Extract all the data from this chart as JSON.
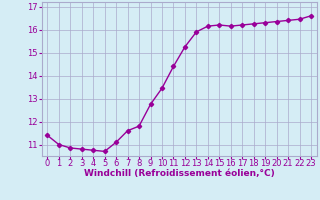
{
  "x": [
    0,
    1,
    2,
    3,
    4,
    5,
    6,
    7,
    8,
    9,
    10,
    11,
    12,
    13,
    14,
    15,
    16,
    17,
    18,
    19,
    20,
    21,
    22,
    23
  ],
  "y": [
    11.4,
    11.0,
    10.85,
    10.8,
    10.75,
    10.7,
    11.1,
    11.6,
    11.8,
    12.75,
    13.45,
    14.4,
    15.25,
    15.9,
    16.15,
    16.2,
    16.15,
    16.2,
    16.25,
    16.3,
    16.35,
    16.4,
    16.45,
    16.6
  ],
  "line_color": "#990099",
  "marker": "D",
  "marker_size": 2.2,
  "bg_color": "#d5edf5",
  "grid_color": "#aaaacc",
  "xlabel": "Windchill (Refroidissement éolien,°C)",
  "xlabel_color": "#990099",
  "tick_color": "#990099",
  "ylim": [
    10.5,
    17.2
  ],
  "xlim": [
    -0.5,
    23.5
  ],
  "yticks": [
    11,
    12,
    13,
    14,
    15,
    16,
    17
  ],
  "xticks": [
    0,
    1,
    2,
    3,
    4,
    5,
    6,
    7,
    8,
    9,
    10,
    11,
    12,
    13,
    14,
    15,
    16,
    17,
    18,
    19,
    20,
    21,
    22,
    23
  ],
  "font_size": 6.0,
  "xlabel_font_size": 6.5,
  "linewidth": 1.0
}
